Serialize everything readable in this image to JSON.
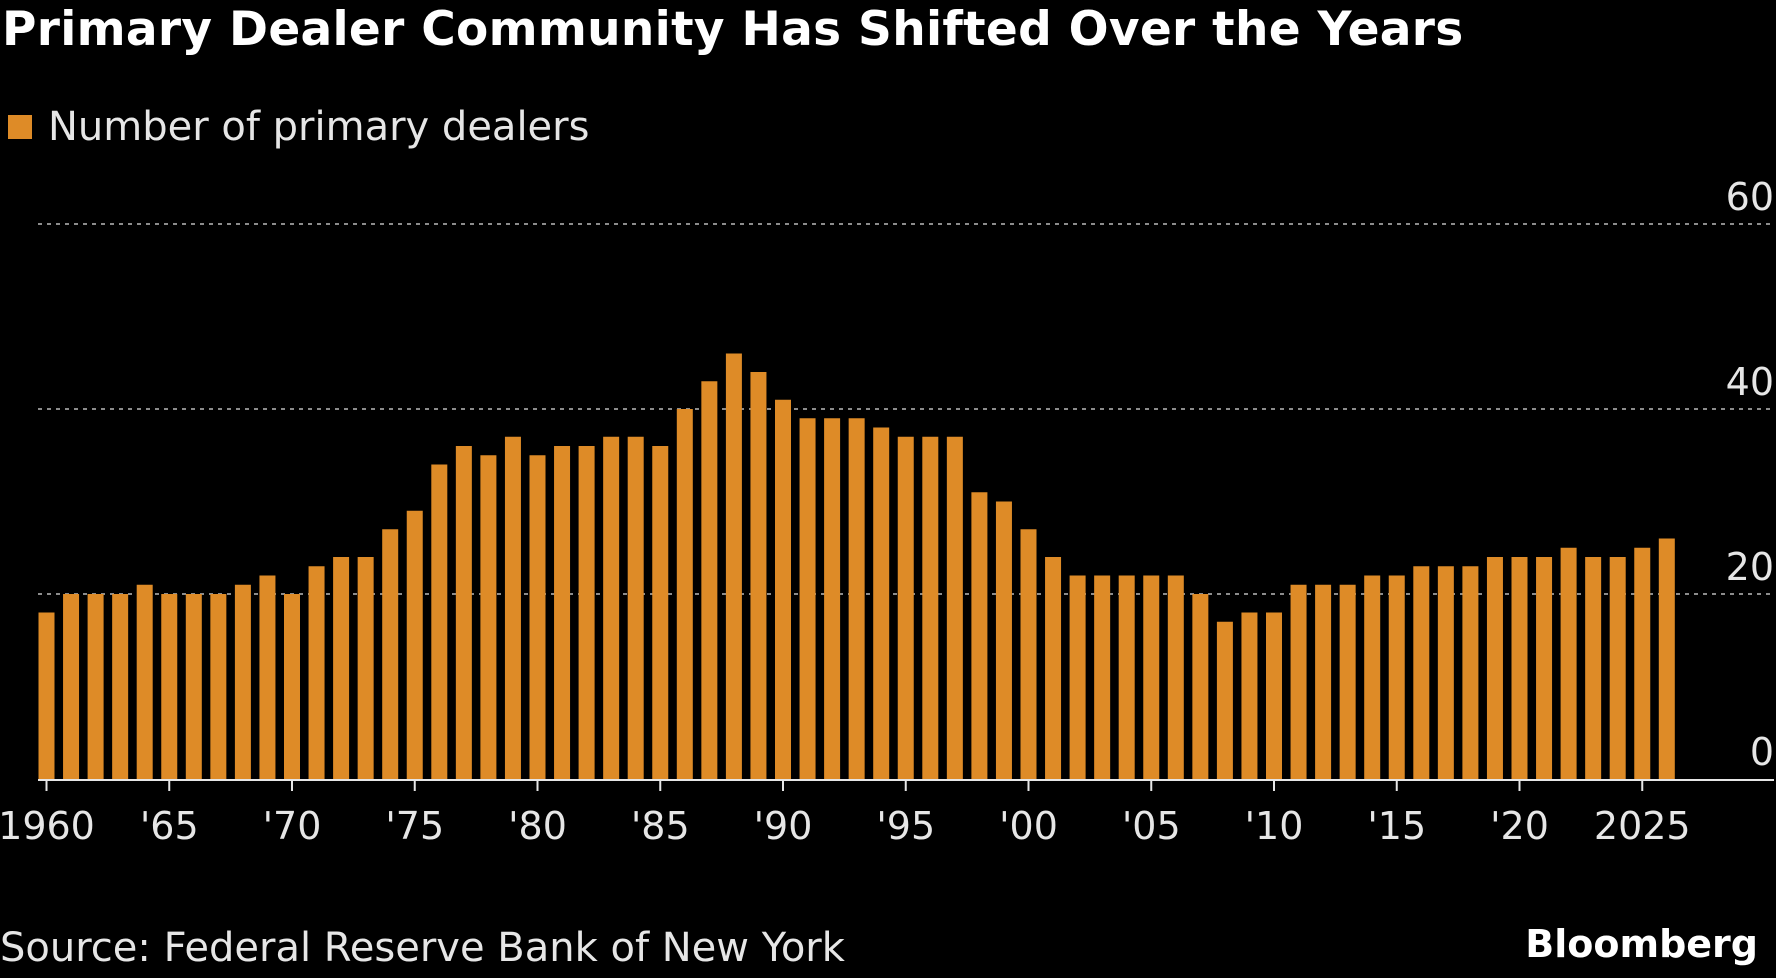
{
  "chart_data": {
    "type": "bar",
    "title": "Primary Dealer Community Has Shifted Over the Years",
    "legend": [
      {
        "name": "Number of primary dealers",
        "color": "#DE8B27"
      }
    ],
    "series": [
      {
        "name": "Number of primary dealers",
        "color": "#DE8B27",
        "values": [
          18,
          20,
          20,
          20,
          21,
          20,
          20,
          20,
          21,
          22,
          20,
          23,
          24,
          24,
          27,
          29,
          34,
          36,
          35,
          37,
          35,
          36,
          36,
          37,
          37,
          36,
          40,
          43,
          46,
          44,
          41,
          39,
          39,
          39,
          38,
          37,
          37,
          37,
          31,
          30,
          27,
          24,
          22,
          22,
          22,
          22,
          22,
          20,
          17,
          18,
          18,
          21,
          21,
          21,
          22,
          22,
          23,
          23,
          23,
          24,
          24,
          24,
          25,
          24,
          24,
          25,
          26
        ]
      }
    ],
    "x": [
      1960,
      1961,
      1962,
      1963,
      1964,
      1965,
      1966,
      1967,
      1968,
      1969,
      1970,
      1971,
      1972,
      1973,
      1974,
      1975,
      1976,
      1977,
      1978,
      1979,
      1980,
      1981,
      1982,
      1983,
      1984,
      1985,
      1986,
      1987,
      1988,
      1989,
      1990,
      1991,
      1992,
      1993,
      1994,
      1995,
      1996,
      1997,
      1998,
      1999,
      2000,
      2001,
      2002,
      2003,
      2004,
      2005,
      2006,
      2007,
      2008,
      2009,
      2010,
      2011,
      2012,
      2013,
      2014,
      2015,
      2016,
      2017,
      2018,
      2019,
      2020,
      2021,
      2022,
      2023,
      2024,
      2025,
      2026
    ],
    "x_ticks": [
      {
        "year": 1960,
        "label": "1960"
      },
      {
        "year": 1965,
        "label": "'65"
      },
      {
        "year": 1970,
        "label": "'70"
      },
      {
        "year": 1975,
        "label": "'75"
      },
      {
        "year": 1980,
        "label": "'80"
      },
      {
        "year": 1985,
        "label": "'85"
      },
      {
        "year": 1990,
        "label": "'90"
      },
      {
        "year": 1995,
        "label": "'95"
      },
      {
        "year": 2000,
        "label": "'00"
      },
      {
        "year": 2005,
        "label": "'05"
      },
      {
        "year": 2010,
        "label": "'10"
      },
      {
        "year": 2015,
        "label": "'15"
      },
      {
        "year": 2020,
        "label": "'20"
      },
      {
        "year": 2025,
        "label": "2025"
      }
    ],
    "y_ticks": [
      0,
      20,
      40,
      60
    ],
    "ylim": [
      0,
      60
    ],
    "xlabel": "",
    "ylabel": "",
    "grid": true
  },
  "source": "Source: Federal Reserve Bank of New York",
  "logo": "Bloomberg",
  "colors": {
    "background": "#000000",
    "bar": "#DE8B27",
    "grid": "#8c8c8c",
    "axis": "#e6e6e6",
    "text": "#e6e6e6",
    "title": "#ffffff"
  }
}
